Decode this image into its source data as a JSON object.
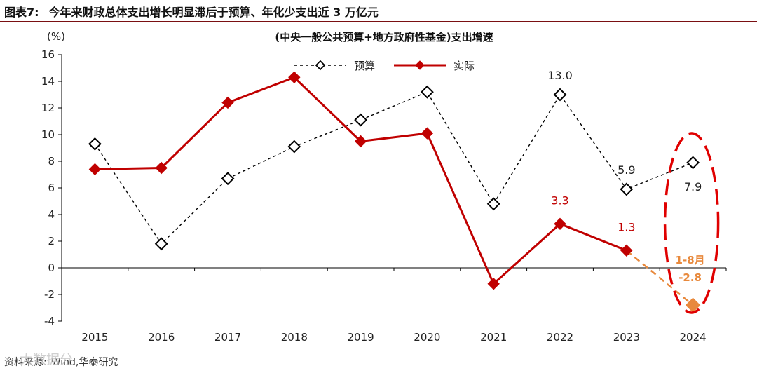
{
  "figure": {
    "label": "图表7:",
    "heading": "今年来财政总体支出增长明显滞后于预算、年化少支出近 3 万亿元",
    "source_label": "资料来源:",
    "source_text": "Wind,华泰研究",
    "watermark": "大数据分"
  },
  "chart_data": {
    "type": "line",
    "title": "(中央一般公共预算+地方政府性基金)支出增速",
    "ylabel": "(%)",
    "xlabel": "",
    "ylim": [
      -4,
      16
    ],
    "yticks": [
      -4,
      -2,
      0,
      2,
      4,
      6,
      8,
      10,
      12,
      14,
      16
    ],
    "categories": [
      "2015",
      "2016",
      "2017",
      "2018",
      "2019",
      "2020",
      "2021",
      "2022",
      "2023",
      "2024"
    ],
    "grid": false,
    "legend_position": "top-center",
    "series": [
      {
        "name": "预算",
        "style": "dashed",
        "marker": "open-diamond",
        "color": "#000000",
        "values": [
          9.3,
          1.8,
          6.7,
          9.1,
          11.1,
          13.2,
          4.8,
          13.0,
          5.9,
          7.9
        ]
      },
      {
        "name": "实际",
        "style": "solid",
        "marker": "filled-diamond",
        "color": "#c00000",
        "values": [
          7.4,
          7.5,
          12.4,
          14.3,
          9.5,
          10.1,
          -1.2,
          3.3,
          1.3,
          null
        ]
      },
      {
        "name": "2024年1-8月",
        "style": "dashed",
        "marker": "filled-diamond",
        "color": "#e8893c",
        "points": [
          {
            "x": "2023",
            "y": 1.3
          },
          {
            "x": "2024",
            "y": -2.8
          }
        ]
      }
    ],
    "data_labels": [
      {
        "series": "预算",
        "x": "2022",
        "text": "13.0",
        "color": "#222222"
      },
      {
        "series": "预算",
        "x": "2023",
        "text": "5.9",
        "color": "#222222"
      },
      {
        "series": "预算",
        "x": "2024",
        "text": "7.9",
        "color": "#222222"
      },
      {
        "series": "实际",
        "x": "2022",
        "text": "3.3",
        "color": "#c00000"
      },
      {
        "series": "实际",
        "x": "2023",
        "text": "1.3",
        "color": "#c00000"
      }
    ],
    "annotations": {
      "ytd_label": "1-8月",
      "ytd_value": "-2.8",
      "ytd_color": "#e8893c",
      "highlight": "2024",
      "highlight_color": "#e00000"
    }
  }
}
